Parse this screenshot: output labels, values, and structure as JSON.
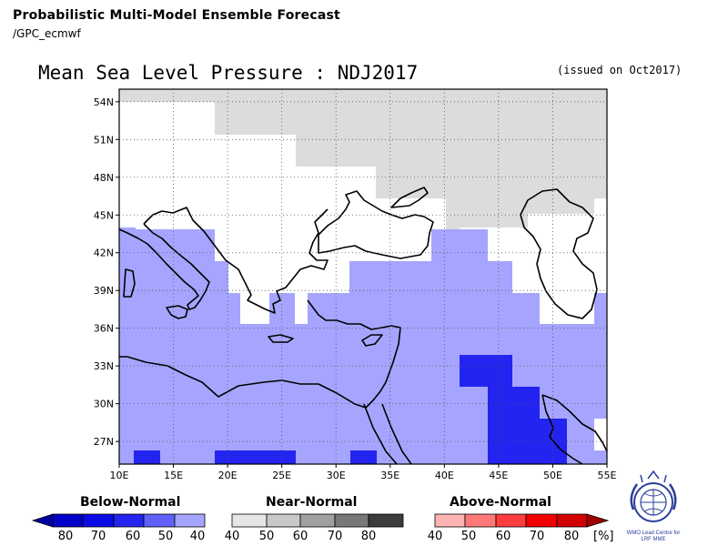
{
  "header": {
    "title": "Probabilistic Multi-Model Ensemble Forecast",
    "subtitle": "/GPC_ecmwf"
  },
  "map": {
    "title": "Mean Sea Level Pressure : NDJ2017",
    "issued": "(issued on Oct2017)",
    "lat_labels": [
      "54N",
      "51N",
      "48N",
      "45N",
      "42N",
      "39N",
      "36N",
      "33N",
      "30N",
      "27N"
    ],
    "lon_labels": [
      "10E",
      "15E",
      "20E",
      "25E",
      "30E",
      "35E",
      "40E",
      "45E",
      "50E",
      "55E"
    ],
    "lon_range": [
      10,
      55
    ],
    "lat_range": [
      25.2,
      55
    ],
    "colors": {
      "below_40": "#a5a5ff",
      "below_70": "#2424f0",
      "near_40": "#dcdcdc",
      "land_outline": "#000000"
    }
  },
  "legend": {
    "below": {
      "title": "Below-Normal",
      "ticks": [
        "80",
        "70",
        "60",
        "50",
        "40"
      ],
      "colors": [
        "#0000a0",
        "#0000c8",
        "#0a0ae6",
        "#4646f5",
        "#8282fa",
        "#a5a5ff"
      ]
    },
    "near": {
      "title": "Near-Normal",
      "ticks": [
        "40",
        "50",
        "60",
        "70",
        "80"
      ],
      "colors": [
        "#e6e6e6",
        "#c8c8c8",
        "#a0a0a0",
        "#787878",
        "#3c3c3c"
      ]
    },
    "above": {
      "title": "Above-Normal",
      "ticks": [
        "40",
        "50",
        "60",
        "70",
        "80"
      ],
      "unit": "[%]",
      "colors": [
        "#ffb4b4",
        "#ff7878",
        "#ff3c3c",
        "#f00000",
        "#d20000",
        "#a00000"
      ]
    }
  },
  "logo": {
    "caption": "WMO Lead Centre for LRF MME"
  }
}
